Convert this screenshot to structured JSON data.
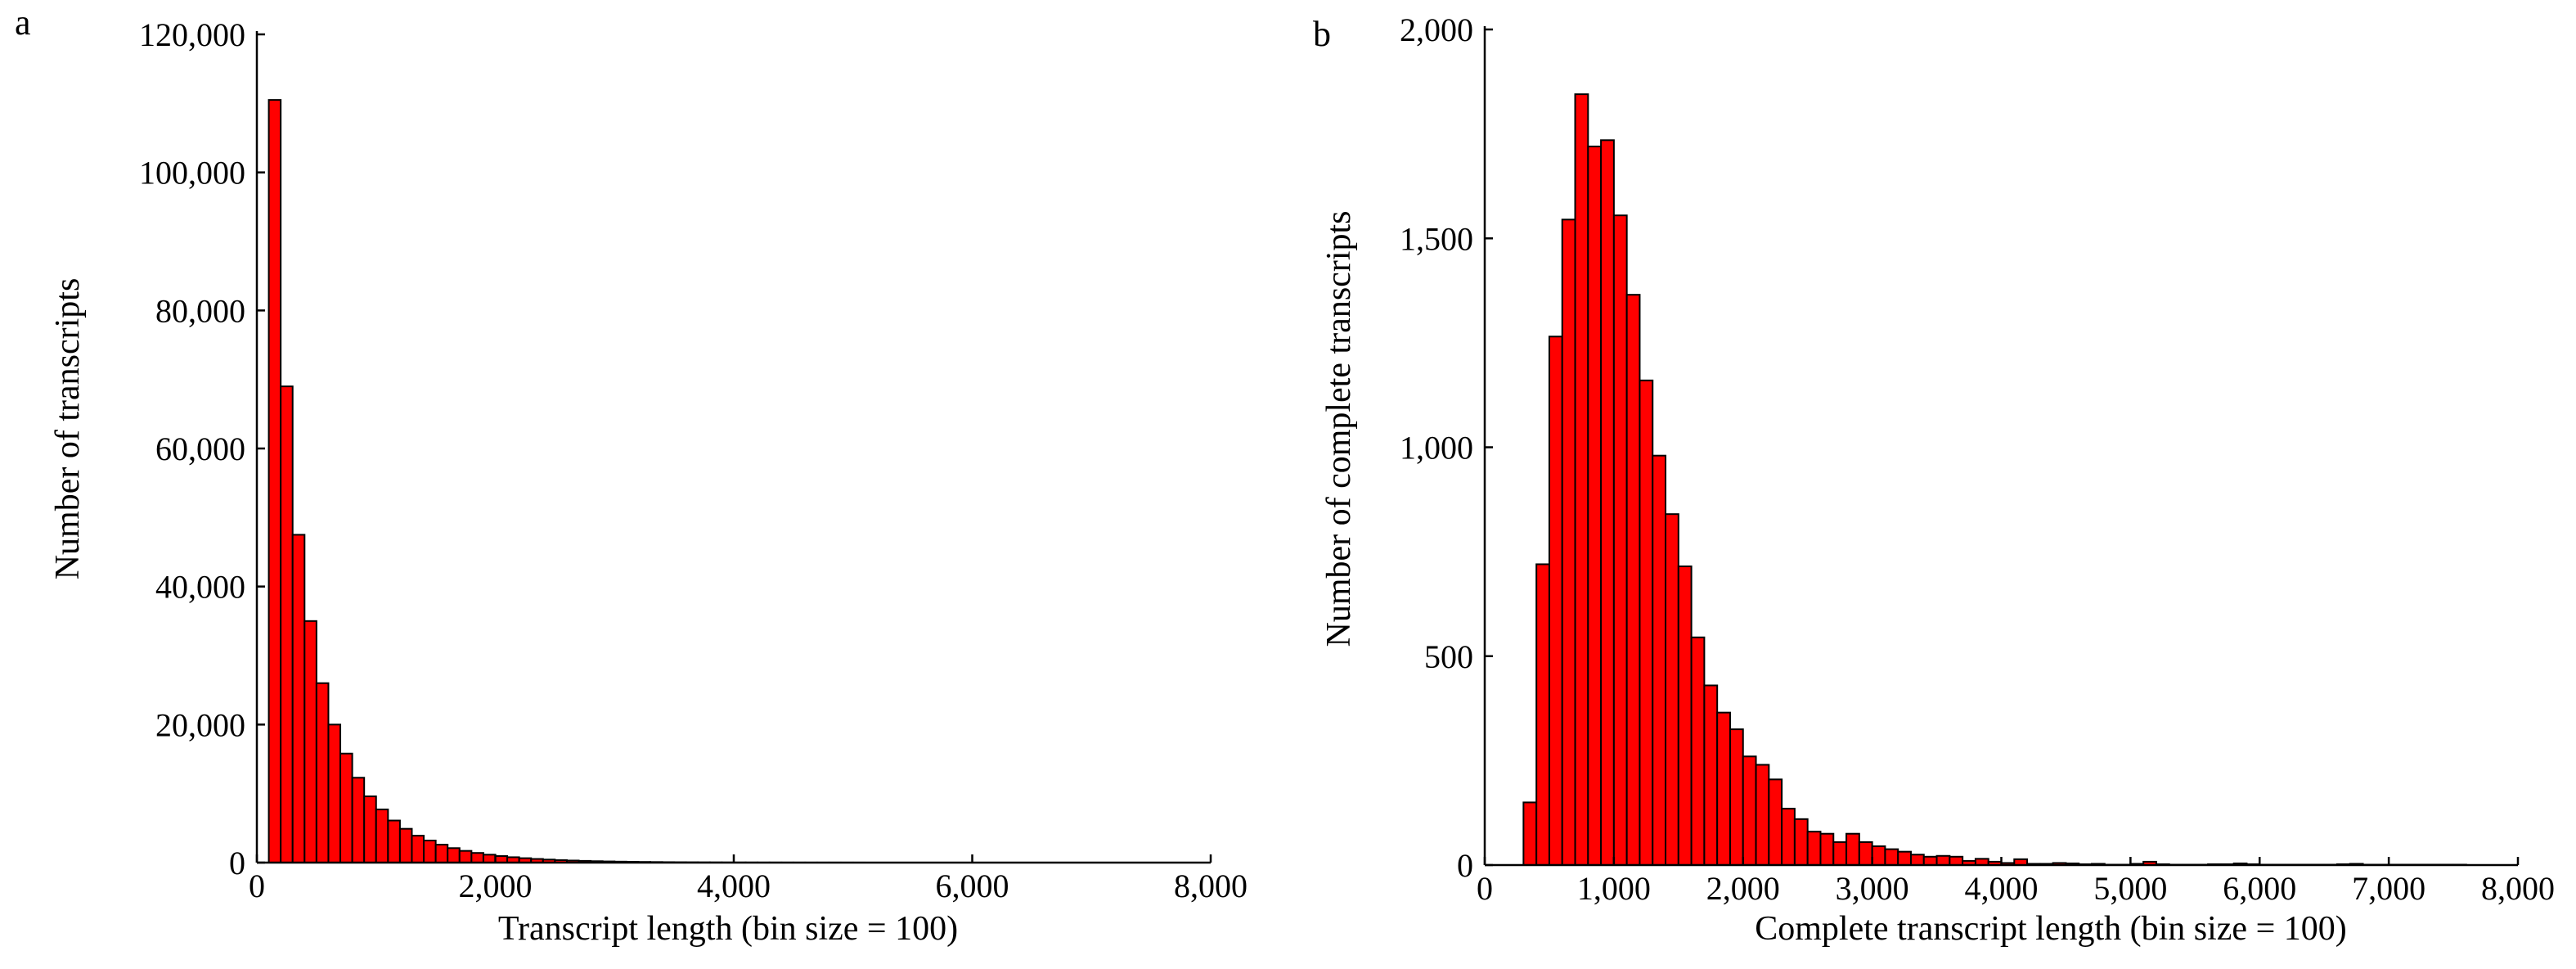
{
  "figure": {
    "bar_fill": "#ff0000",
    "bar_stroke": "#000000",
    "axis_color": "#000000"
  },
  "chart_data": [
    {
      "panel_label": "a",
      "type": "bar",
      "bin_size": 100,
      "xlabel": "Transcript length (bin size = 100)",
      "ylabel": "Number of transcripts",
      "title": "",
      "xlim": [
        0,
        8000
      ],
      "ylim": [
        0,
        120000
      ],
      "grid": false,
      "x_ticks": [
        0,
        2000,
        4000,
        6000,
        8000
      ],
      "x_tick_labels": [
        "0",
        "2,000",
        "4,000",
        "6,000",
        "8,000"
      ],
      "y_ticks": [
        0,
        20000,
        40000,
        60000,
        80000,
        100000,
        120000
      ],
      "y_tick_labels": [
        "0",
        "20,000",
        "40,000",
        "60,000",
        "80,000",
        "100,000",
        "120,000"
      ],
      "bin_start": 100,
      "values": [
        110500,
        69000,
        47500,
        35000,
        26000,
        20000,
        15800,
        12300,
        9600,
        7700,
        6100,
        4900,
        3900,
        3200,
        2600,
        2100,
        1700,
        1400,
        1150,
        950,
        780,
        640,
        530,
        440,
        360,
        300,
        250,
        205,
        170,
        140,
        115,
        95,
        80,
        65,
        55,
        45,
        37,
        30,
        25,
        21,
        17,
        14,
        12,
        10,
        8,
        7,
        6,
        5,
        4,
        3
      ]
    },
    {
      "panel_label": "b",
      "type": "bar",
      "bin_size": 100,
      "xlabel": "Complete transcript length (bin size = 100)",
      "ylabel": "Number of complete transcripts",
      "title": "",
      "xlim": [
        0,
        8000
      ],
      "ylim": [
        0,
        2000
      ],
      "grid": false,
      "x_ticks": [
        0,
        1000,
        2000,
        3000,
        4000,
        5000,
        6000,
        7000,
        8000
      ],
      "x_tick_labels": [
        "0",
        "1,000",
        "2,000",
        "3,000",
        "4,000",
        "5,000",
        "6,000",
        "7,000",
        "8,000"
      ],
      "y_ticks": [
        0,
        500,
        1000,
        1500,
        2000
      ],
      "y_tick_labels": [
        "0",
        "500",
        "1,000",
        "1,500",
        "2,000"
      ],
      "bin_start": 300,
      "values": [
        150,
        720,
        1265,
        1545,
        1845,
        1720,
        1735,
        1555,
        1365,
        1160,
        980,
        840,
        715,
        545,
        430,
        365,
        325,
        260,
        240,
        205,
        135,
        110,
        80,
        75,
        55,
        75,
        55,
        45,
        38,
        32,
        25,
        20,
        22,
        20,
        10,
        15,
        8,
        5,
        14,
        3,
        3,
        5,
        4,
        2,
        3,
        1,
        1,
        3,
        8,
        2,
        1,
        1,
        1,
        2,
        2,
        4,
        2,
        1,
        1,
        1,
        1,
        1,
        1,
        2,
        3,
        1,
        1,
        1,
        1,
        1,
        1,
        1,
        1
      ]
    }
  ]
}
